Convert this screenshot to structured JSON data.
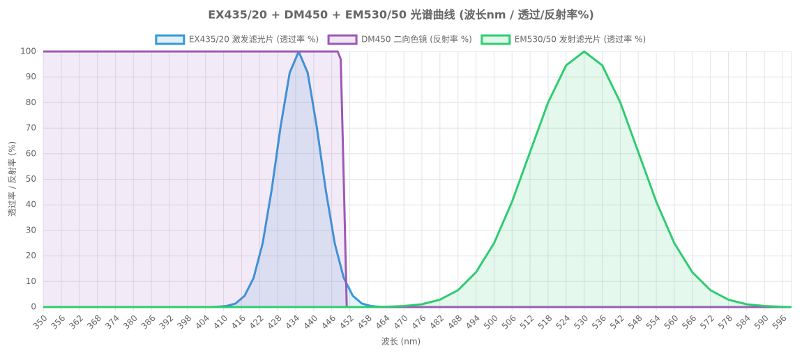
{
  "chart_data": {
    "type": "line",
    "title": "EX435/20 + DM450 + EM530/50 光谱曲线 (波长nm / 透过/反射率%)",
    "x_label": "波长 (nm)",
    "y_label": "透过率 / 反射率 (%)",
    "xlim": [
      350,
      599
    ],
    "xticks": [
      350,
      356,
      362,
      368,
      374,
      380,
      386,
      392,
      398,
      404,
      410,
      416,
      422,
      428,
      434,
      440,
      446,
      452,
      458,
      464,
      470,
      476,
      482,
      488,
      494,
      500,
      506,
      512,
      518,
      524,
      530,
      536,
      542,
      548,
      554,
      560,
      566,
      572,
      578,
      584,
      590,
      596
    ],
    "ylim": [
      0,
      100
    ],
    "yticks": [
      0,
      10,
      20,
      30,
      40,
      50,
      60,
      70,
      80,
      90,
      100
    ],
    "grid": true,
    "legend": "top",
    "series": [
      {
        "name": "EX435/20 激发滤光片 (透过率 %)",
        "color": "#3498db",
        "x": [
          350,
          405,
          408,
          411,
          414,
          417,
          420,
          423,
          426,
          429,
          432,
          435,
          438,
          441,
          444,
          447,
          450,
          453,
          456,
          459,
          462,
          465,
          599
        ],
        "values": [
          0,
          0,
          0.1,
          0.4,
          1.4,
          4.4,
          11.4,
          24.9,
          45.8,
          70.7,
          91.7,
          100,
          91.7,
          70.7,
          45.8,
          24.9,
          11.4,
          4.4,
          1.4,
          0.4,
          0.1,
          0,
          0
        ]
      },
      {
        "name": "DM450 二向色镜 (反射率 %)",
        "color": "#9b59b6",
        "x": [
          350,
          448,
          449,
          450,
          451,
          599
        ],
        "values": [
          100,
          100,
          97,
          50,
          0,
          0
        ]
      },
      {
        "name": "EM530/50 发射滤光片 (透过率 %)",
        "color": "#2ecc71",
        "x": [
          350,
          458,
          464,
          470,
          476,
          482,
          488,
          494,
          500,
          506,
          512,
          518,
          524,
          530,
          536,
          542,
          548,
          554,
          560,
          566,
          572,
          578,
          584,
          590,
          596,
          599
        ],
        "values": [
          0,
          0,
          0.1,
          0.4,
          1.1,
          2.9,
          6.6,
          13.6,
          25,
          41.2,
          60.7,
          80.1,
          94.6,
          100,
          94.6,
          80.1,
          60.7,
          41.2,
          25,
          13.6,
          6.6,
          2.9,
          1.1,
          0.4,
          0.1,
          0
        ]
      }
    ]
  }
}
